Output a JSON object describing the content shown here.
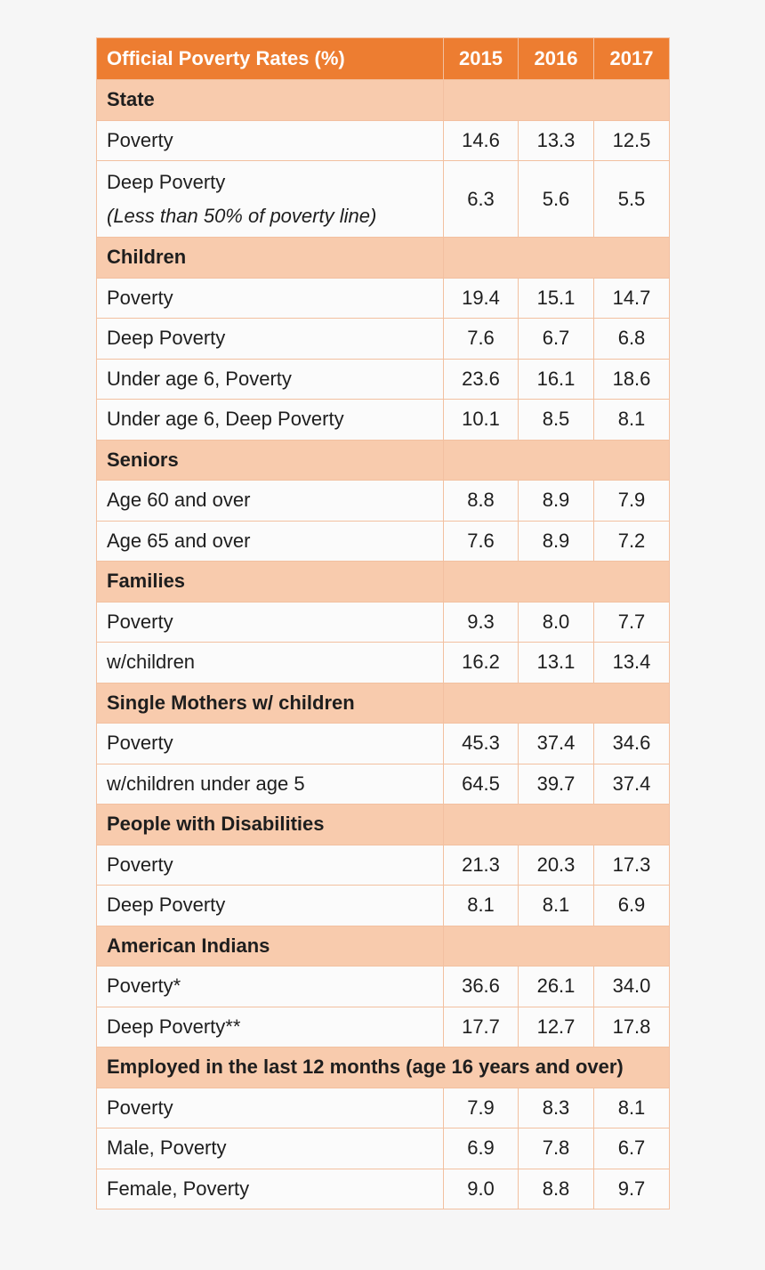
{
  "header": {
    "title": "Official Poverty Rates (%)",
    "years": [
      "2015",
      "2016",
      "2017"
    ]
  },
  "sections": [
    {
      "title": "State",
      "rows": [
        {
          "label": "Poverty",
          "values": [
            "14.6",
            "13.3",
            "12.5"
          ]
        },
        {
          "label": "Deep Poverty",
          "note": "(Less than 50% of poverty line)",
          "values": [
            "6.3",
            "5.6",
            "5.5"
          ]
        }
      ]
    },
    {
      "title": "Children",
      "rows": [
        {
          "label": "Poverty",
          "values": [
            "19.4",
            "15.1",
            "14.7"
          ]
        },
        {
          "label": "Deep Poverty",
          "values": [
            "7.6",
            "6.7",
            "6.8"
          ]
        },
        {
          "label": "Under age 6, Poverty",
          "values": [
            "23.6",
            "16.1",
            "18.6"
          ]
        },
        {
          "label": "Under age 6, Deep Poverty",
          "values": [
            "10.1",
            "8.5",
            "8.1"
          ]
        }
      ]
    },
    {
      "title": "Seniors",
      "rows": [
        {
          "label": "Age 60 and over",
          "values": [
            "8.8",
            "8.9",
            "7.9"
          ]
        },
        {
          "label": "Age 65 and over",
          "values": [
            "7.6",
            "8.9",
            "7.2"
          ]
        }
      ]
    },
    {
      "title": "Families",
      "rows": [
        {
          "label": "Poverty",
          "values": [
            "9.3",
            "8.0",
            "7.7"
          ]
        },
        {
          "label": "w/children",
          "values": [
            "16.2",
            "13.1",
            "13.4"
          ]
        }
      ]
    },
    {
      "title": "Single Mothers w/ children",
      "rows": [
        {
          "label": "Poverty",
          "values": [
            "45.3",
            "37.4",
            "34.6"
          ]
        },
        {
          "label": "w/children under age 5",
          "values": [
            "64.5",
            "39.7",
            "37.4"
          ]
        }
      ]
    },
    {
      "title": "People with Disabilities",
      "rows": [
        {
          "label": "Poverty",
          "values": [
            "21.3",
            "20.3",
            "17.3"
          ]
        },
        {
          "label": "Deep Poverty",
          "values": [
            "8.1",
            "8.1",
            "6.9"
          ]
        }
      ]
    },
    {
      "title": "American Indians",
      "rows": [
        {
          "label": "Poverty*",
          "values": [
            "36.6",
            "26.1",
            "34.0"
          ]
        },
        {
          "label": "Deep Poverty**",
          "values": [
            "17.7",
            "12.7",
            "17.8"
          ]
        }
      ]
    },
    {
      "title": "Employed in the last 12 months (age 16 years and over)",
      "rows": [
        {
          "label": "Poverty",
          "values": [
            "7.9",
            "8.3",
            "8.1"
          ]
        },
        {
          "label": "Male, Poverty",
          "values": [
            "6.9",
            "7.8",
            "6.7"
          ]
        },
        {
          "label": "Female, Poverty",
          "values": [
            "9.0",
            "8.8",
            "9.7"
          ]
        }
      ]
    }
  ]
}
